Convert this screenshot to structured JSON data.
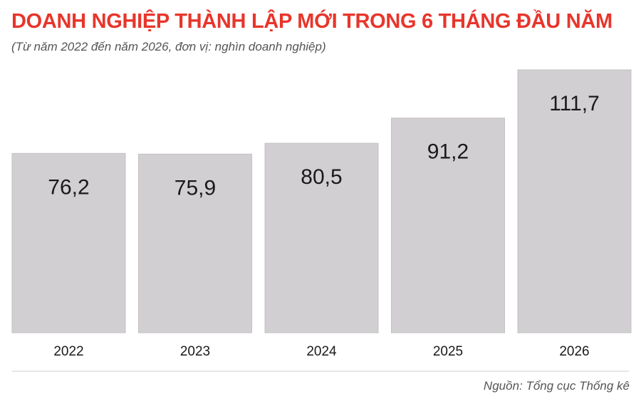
{
  "header": {
    "title": "DOANH NGHIỆP THÀNH LẬP MỚI TRONG 6 THÁNG ĐẦU NĂM",
    "subtitle": "(Từ năm 2022 đến năm 2026, đơn vị: nghìn doanh nghiệp)"
  },
  "footer": {
    "source": "Nguồn: Tổng cục Thống kê"
  },
  "chart_data": {
    "type": "bar",
    "title": "DOANH NGHIỆP THÀNH LẬP MỚI TRONG 6 THÁNG ĐẦU NĂM",
    "subtitle": "(Từ năm 2022 đến năm 2026, đơn vị: nghìn doanh nghiệp)",
    "categories": [
      "2022",
      "2023",
      "2024",
      "2025",
      "2026"
    ],
    "values": [
      76.2,
      75.9,
      80.5,
      91.2,
      111.7
    ],
    "value_labels": [
      "76,2",
      "75,9",
      "80,5",
      "91,2",
      "111,7"
    ],
    "xlabel": "",
    "ylabel": "",
    "ylim": [
      0,
      111.7
    ],
    "grid": false,
    "legend": "none",
    "colors": {
      "bar": "#d2cfd2",
      "bar_border": "#c4c0c4",
      "label": "#1a1a1a",
      "title": "#e8352b",
      "axis_text": "#1a1a1a",
      "divider": "#cccccc"
    }
  }
}
